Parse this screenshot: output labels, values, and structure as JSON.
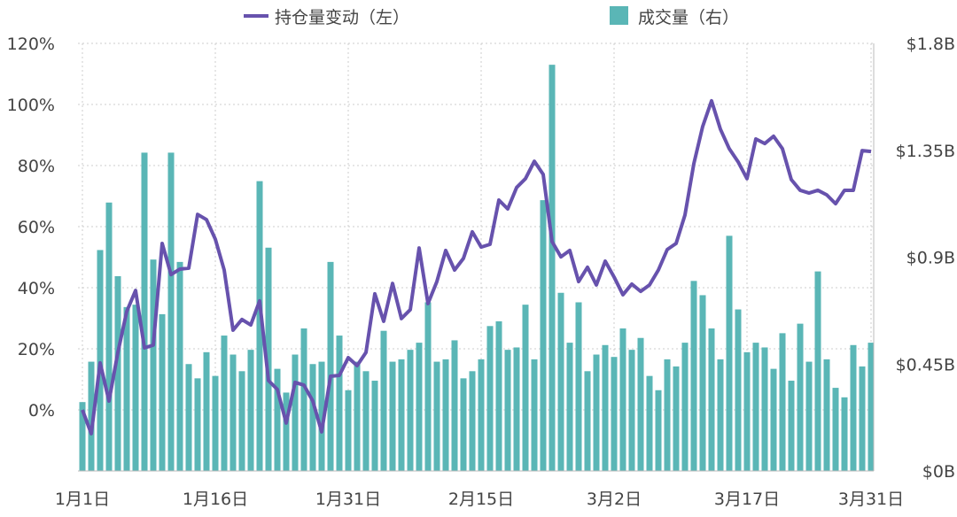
{
  "chart_data": {
    "type": "bar+line",
    "legend": {
      "line_label": "持仓量变动（左）",
      "bar_label": "成交量（右）",
      "placement": "top-center"
    },
    "colors": {
      "line": "#6752ad",
      "bar": "#5ab6b6",
      "grid": "#cccccc",
      "text": "#444444"
    },
    "left_axis": {
      "ylim": [
        -20,
        120
      ],
      "ticks": [
        0,
        20,
        40,
        60,
        80,
        100,
        120
      ],
      "tick_labels": [
        "0%",
        "20%",
        "40%",
        "60%",
        "80%",
        "100%",
        "120%"
      ]
    },
    "right_axis": {
      "ylim": [
        0,
        1.8
      ],
      "ticks": [
        0,
        0.45,
        0.9,
        1.35,
        1.8
      ],
      "tick_labels": [
        "$0B",
        "$0.45B",
        "$0.9B",
        "$1.35B",
        "$1.8B"
      ]
    },
    "x_tick_labels": [
      "1月1日",
      "1月16日",
      "1月31日",
      "2月15日",
      "3月2日",
      "3月17日",
      "3月31日"
    ],
    "x_tick_days": [
      0,
      15,
      30,
      45,
      60,
      75,
      89
    ],
    "grid": true,
    "series": [
      {
        "name": "持仓量变动（左）",
        "type": "line",
        "axis": "left",
        "unit": "%",
        "values": [
          0,
          -7.8,
          15.4,
          2.9,
          18.8,
          32.2,
          39.1,
          20.3,
          21.2,
          54.5,
          44.3,
          46.1,
          46.4,
          64,
          62.3,
          55.9,
          45.8,
          26.1,
          29.6,
          27.8,
          35.7,
          9.6,
          6.7,
          -4.3,
          9,
          8.1,
          2.9,
          -7.2,
          11,
          11.3,
          17.1,
          14.5,
          18.8,
          38,
          29,
          41.4,
          29.9,
          32.8,
          53,
          34.8,
          42,
          52.2,
          45.8,
          49.6,
          58.3,
          53.3,
          54.2,
          68.7,
          65.8,
          72.8,
          75.7,
          81.4,
          77.1,
          55.1,
          50.1,
          52.2,
          42,
          46.7,
          40.9,
          48.7,
          43.5,
          37.7,
          41.2,
          38.8,
          40.9,
          45.8,
          52.5,
          54.5,
          63.8,
          80.6,
          92.8,
          101.2,
          91.9,
          85.5,
          81.2,
          75.7,
          88.7,
          87.2,
          89.6,
          85.5,
          75.4,
          71.9,
          71,
          71.9,
          70.4,
          67.5,
          71.9,
          71.9,
          84.9,
          84.6
        ]
      },
      {
        "name": "成交量（右）",
        "type": "bar",
        "axis": "right",
        "unit": "$B",
        "values": [
          0.29,
          0.46,
          0.93,
          1.13,
          0.82,
          0.69,
          0.7,
          1.34,
          0.89,
          0.66,
          1.34,
          0.88,
          0.45,
          0.39,
          0.5,
          0.4,
          0.57,
          0.49,
          0.42,
          0.51,
          1.22,
          0.94,
          0.43,
          0.33,
          0.49,
          0.6,
          0.45,
          0.46,
          0.88,
          0.57,
          0.34,
          0.46,
          0.42,
          0.38,
          0.59,
          0.46,
          0.47,
          0.51,
          0.54,
          0.71,
          0.46,
          0.47,
          0.55,
          0.39,
          0.42,
          0.47,
          0.61,
          0.63,
          0.51,
          0.52,
          0.7,
          0.47,
          1.14,
          1.71,
          0.75,
          0.54,
          0.71,
          0.42,
          0.49,
          0.53,
          0.48,
          0.6,
          0.51,
          0.56,
          0.4,
          0.34,
          0.47,
          0.44,
          0.54,
          0.8,
          0.74,
          0.6,
          0.47,
          0.99,
          0.68,
          0.5,
          0.54,
          0.52,
          0.43,
          0.58,
          0.38,
          0.62,
          0.46,
          0.84,
          0.47,
          0.35,
          0.31,
          0.53,
          0.44,
          0.54
        ]
      }
    ]
  }
}
